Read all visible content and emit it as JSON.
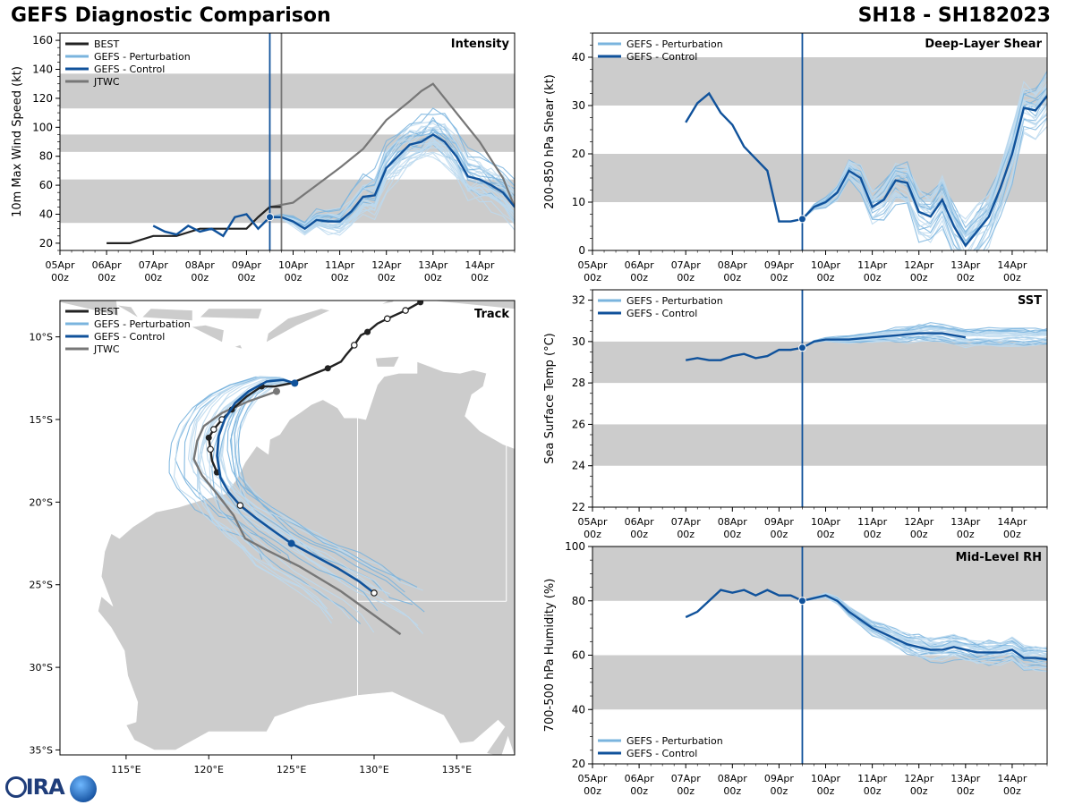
{
  "header": {
    "title": "GEFS Diagnostic Comparison",
    "storm": "SH18 - SH182023"
  },
  "colors": {
    "best": "#222222",
    "pert": "#7ab4de",
    "pert_light": "#bcd9ee",
    "control": "#10529b",
    "jtwc": "#777777",
    "band": "#cccccc",
    "land": "#cccccc"
  },
  "time_axis": {
    "ticks": [
      {
        "top": "05Apr",
        "bottom": "00z"
      },
      {
        "top": "06Apr",
        "bottom": "00z"
      },
      {
        "top": "07Apr",
        "bottom": "00z"
      },
      {
        "top": "08Apr",
        "bottom": "00z"
      },
      {
        "top": "09Apr",
        "bottom": "00z"
      },
      {
        "top": "10Apr",
        "bottom": "00z"
      },
      {
        "top": "11Apr",
        "bottom": "00z"
      },
      {
        "top": "12Apr",
        "bottom": "00z"
      },
      {
        "top": "13Apr",
        "bottom": "00z"
      },
      {
        "top": "14Apr",
        "bottom": "00z"
      }
    ],
    "xlim_days": [
      0,
      9.75
    ],
    "init_day": 4.5
  },
  "chart_data": [
    {
      "id": "intensity",
      "type": "line",
      "title": "Intensity",
      "ylabel": "10m Max Wind Speed (kt)",
      "ylim": [
        15,
        165
      ],
      "yticks": [
        20,
        40,
        60,
        80,
        100,
        120,
        140,
        160
      ],
      "bands": [
        [
          34,
          64
        ],
        [
          83,
          95
        ],
        [
          113,
          137
        ]
      ],
      "legend": [
        "BEST",
        "GEFS - Perturbation",
        "GEFS - Control",
        "JTWC"
      ],
      "best": {
        "x": [
          1,
          1.5,
          2,
          2.5,
          3,
          3.5,
          4,
          4.25,
          4.5,
          4.75
        ],
        "y": [
          20,
          20,
          25,
          25,
          30,
          30,
          30,
          38,
          45,
          45
        ]
      },
      "control": {
        "x": [
          2,
          2.25,
          2.5,
          2.75,
          3,
          3.25,
          3.5,
          3.75,
          4,
          4.25,
          4.5,
          4.75,
          5,
          5.25,
          5.5,
          5.75,
          6,
          6.25,
          6.5,
          6.75,
          7,
          7.25,
          7.5,
          7.75,
          8,
          8.25,
          8.5,
          8.75,
          9,
          9.25,
          9.5,
          9.75
        ],
        "y": [
          32,
          28,
          26,
          32,
          28,
          30,
          25,
          38,
          40,
          30,
          38,
          38,
          35,
          30,
          36,
          35,
          35,
          42,
          52,
          53,
          72,
          80,
          88,
          90,
          95,
          90,
          80,
          66,
          64,
          60,
          55,
          45
        ]
      },
      "jtwc": {
        "x": [
          4.5,
          5,
          5.5,
          6,
          6.5,
          7,
          7.5,
          7.75,
          8,
          8.5,
          9,
          9.5,
          9.75
        ],
        "y": [
          45,
          48,
          60,
          72,
          85,
          105,
          118,
          125,
          130,
          110,
          90,
          65,
          45
        ]
      },
      "vlines": [
        4.5,
        4.75
      ]
    },
    {
      "id": "shear",
      "type": "line",
      "title": "Deep-Layer Shear",
      "ylabel": "200-850 hPa Shear (kt)",
      "ylim": [
        0,
        45
      ],
      "yticks": [
        0,
        10,
        20,
        30,
        40
      ],
      "bands": [
        [
          10,
          20
        ],
        [
          30,
          40
        ]
      ],
      "legend": [
        "GEFS - Perturbation",
        "GEFS - Control"
      ],
      "control": {
        "x": [
          2,
          2.25,
          2.5,
          2.75,
          3,
          3.25,
          3.5,
          3.75,
          4,
          4.25,
          4.5,
          4.75,
          5,
          5.25,
          5.5,
          5.75,
          6,
          6.25,
          6.5,
          6.75,
          7,
          7.25,
          7.5,
          7.75,
          8,
          8.25,
          8.5,
          8.75,
          9,
          9.25,
          9.5,
          9.75
        ],
        "y": [
          26.5,
          30.5,
          32.5,
          28.5,
          26,
          21.5,
          19,
          16.5,
          6,
          6,
          6.5,
          9,
          10,
          12,
          16.5,
          15,
          9,
          10.5,
          14.5,
          14,
          8,
          7,
          10.5,
          5,
          1,
          4,
          7,
          13,
          20,
          29.5,
          29,
          32
        ]
      },
      "vlines": [
        4.5
      ]
    },
    {
      "id": "sst",
      "type": "line",
      "title": "SST",
      "ylabel": "Sea Surface Temp (°C)",
      "ylim": [
        22,
        32.5
      ],
      "yticks": [
        22,
        24,
        26,
        28,
        30,
        32
      ],
      "bands": [
        [
          24,
          26
        ],
        [
          28,
          30
        ]
      ],
      "legend": [
        "GEFS - Perturbation",
        "GEFS - Control"
      ],
      "control": {
        "x": [
          2,
          2.25,
          2.5,
          2.75,
          3,
          3.25,
          3.5,
          3.75,
          4,
          4.25,
          4.5,
          4.75,
          5,
          5.5,
          6,
          6.5,
          7,
          7.5,
          8
        ],
        "y": [
          29.1,
          29.2,
          29.1,
          29.1,
          29.3,
          29.4,
          29.2,
          29.3,
          29.6,
          29.6,
          29.7,
          30.0,
          30.1,
          30.1,
          30.2,
          30.3,
          30.4,
          30.4,
          30.2
        ]
      },
      "vlines": [
        4.5
      ]
    },
    {
      "id": "rh",
      "type": "line",
      "title": "Mid-Level RH",
      "ylabel": "700-500 hPa Humidity (%)",
      "ylim": [
        20,
        100
      ],
      "yticks": [
        20,
        40,
        60,
        80,
        100
      ],
      "bands": [
        [
          40,
          60
        ],
        [
          80,
          100
        ]
      ],
      "legend": [
        "GEFS - Perturbation",
        "GEFS - Control"
      ],
      "control": {
        "x": [
          2,
          2.25,
          2.5,
          2.75,
          3,
          3.25,
          3.5,
          3.75,
          4,
          4.25,
          4.5,
          4.75,
          5,
          5.25,
          5.5,
          5.75,
          6,
          6.25,
          6.5,
          6.75,
          7,
          7.25,
          7.5,
          7.75,
          8,
          8.25,
          8.5,
          8.75,
          9,
          9.25,
          9.5,
          9.75
        ],
        "y": [
          74,
          76,
          80,
          84,
          83,
          84,
          82,
          84,
          82,
          82,
          80,
          81,
          82,
          80,
          76,
          73,
          70,
          68,
          66,
          64,
          63,
          62,
          62,
          63,
          62,
          61,
          61,
          61,
          62,
          59,
          59,
          58.5
        ]
      },
      "vlines": [
        4.5
      ]
    },
    {
      "id": "track",
      "type": "line",
      "title": "Track",
      "xlim": [
        111,
        138.5
      ],
      "ylim": [
        -35.3,
        -7.8
      ],
      "xticks": [
        115,
        120,
        125,
        130,
        135
      ],
      "xticklabels": [
        "115°E",
        "120°E",
        "125°E",
        "130°E",
        "135°E"
      ],
      "yticks": [
        -10,
        -15,
        -20,
        -25,
        -30,
        -35
      ],
      "yticklabels": [
        "10°S",
        "15°S",
        "20°S",
        "25°S",
        "30°S",
        "35°S"
      ],
      "legend": [
        "BEST",
        "GEFS - Perturbation",
        "GEFS - Control",
        "JTWC"
      ],
      "best": {
        "lon": [
          132.8,
          131.9,
          130.8,
          130.2,
          129.6,
          129.2,
          128.8,
          128.3,
          128.0,
          127.2,
          126.2,
          125.0,
          124.0,
          123.2,
          122.3,
          121.4,
          120.8,
          120.3,
          120.0,
          120.1,
          120.2,
          120.5
        ],
        "lat": [
          -7.9,
          -8.4,
          -8.9,
          -9.2,
          -9.7,
          -9.9,
          -10.5,
          -11.1,
          -11.5,
          -11.9,
          -12.3,
          -12.8,
          -13.0,
          -13.0,
          -13.6,
          -14.4,
          -15.0,
          -15.6,
          -16.1,
          -16.8,
          -17.5,
          -18.2
        ]
      },
      "best_closed_points": [
        0,
        4,
        9,
        13,
        15,
        18,
        21
      ],
      "best_open_points": [
        1,
        2,
        6,
        16,
        17,
        19
      ],
      "control": {
        "lon": [
          125.2,
          124.5,
          123.5,
          122.4,
          121.6,
          121.0,
          120.6,
          120.5,
          120.7,
          121.2,
          121.9,
          122.9,
          124.0,
          125.0,
          126.3,
          127.8,
          129.1,
          130.0
        ],
        "lat": [
          -12.8,
          -12.6,
          -12.7,
          -13.3,
          -14.0,
          -14.9,
          -16.0,
          -17.2,
          -18.5,
          -19.4,
          -20.2,
          -21.0,
          -21.8,
          -22.5,
          -23.2,
          -24.0,
          -24.8,
          -25.5
        ]
      },
      "control_closed_points": [
        0,
        13
      ],
      "control_open_points": [
        10,
        17
      ],
      "jtwc": {
        "lon": [
          124.1,
          122.4,
          120.8,
          119.7,
          119.3,
          119.1,
          119.6,
          120.5,
          121.5,
          122.2,
          123.5,
          125.5,
          128.0,
          131.6
        ],
        "lat": [
          -13.3,
          -13.9,
          -14.6,
          -15.4,
          -16.3,
          -17.4,
          -18.4,
          -19.5,
          -20.8,
          -22.2,
          -22.9,
          -23.9,
          -25.4,
          -28.0
        ]
      },
      "jtwc_closed_points": [
        0
      ]
    }
  ]
}
